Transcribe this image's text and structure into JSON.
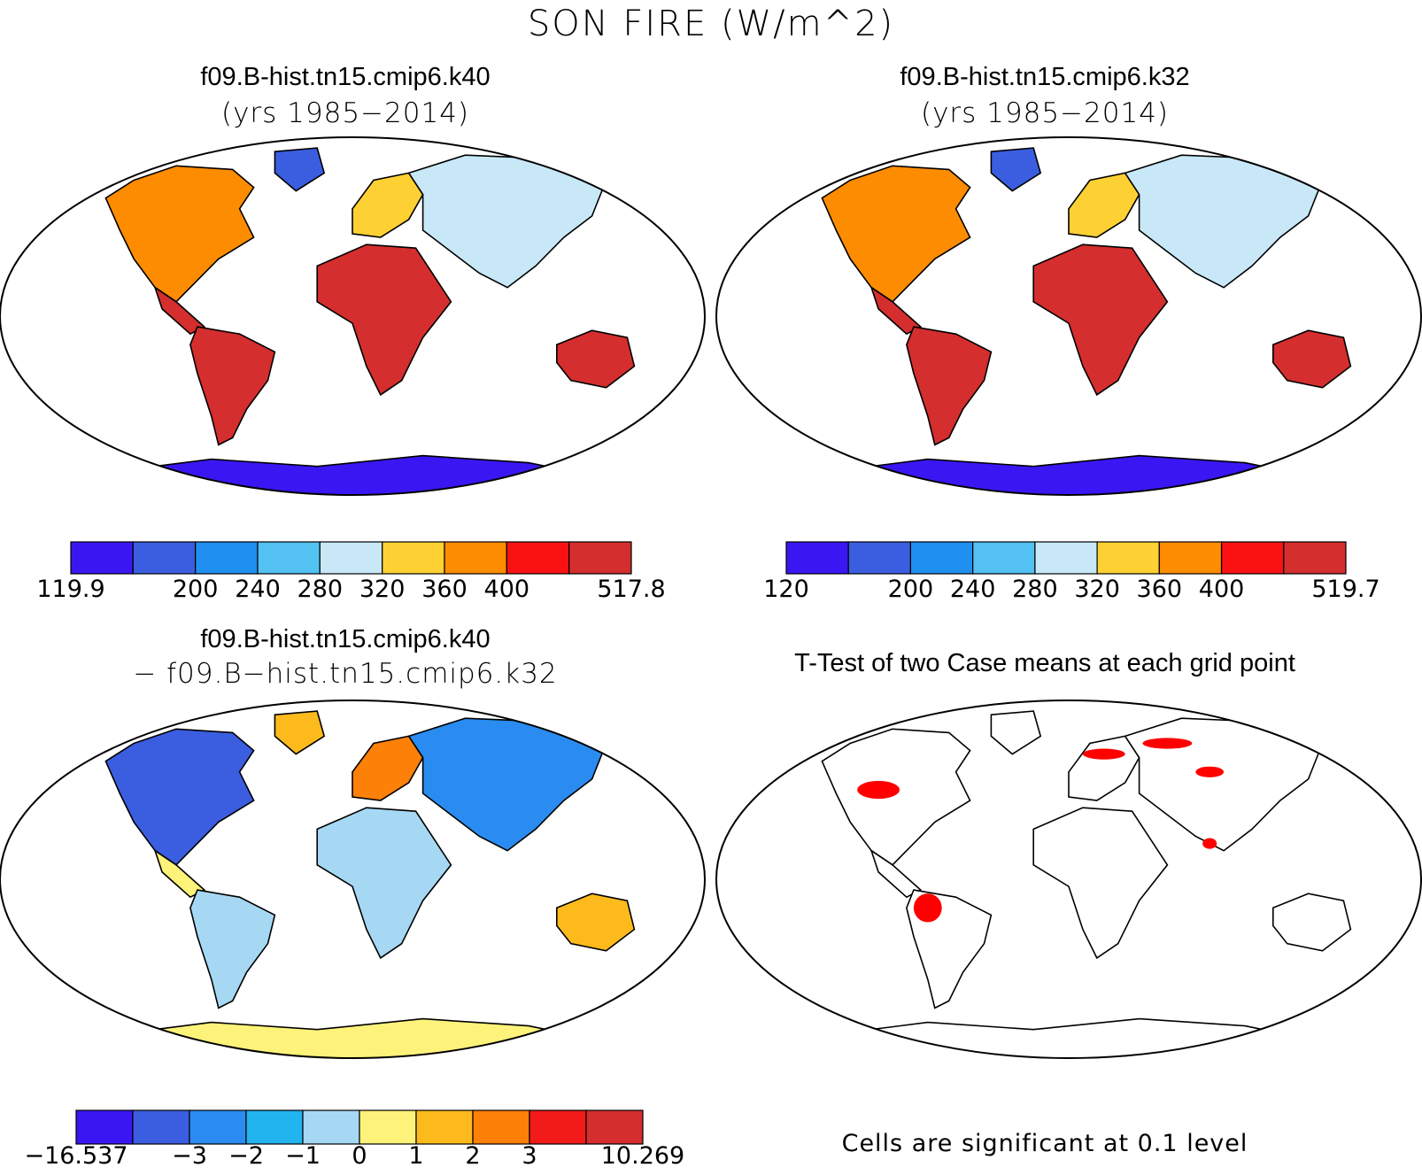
{
  "figure": {
    "title": "SON FIRE (W/m^2)"
  },
  "panels": [
    {
      "title": "f09.B-hist.tn15.cmip6.k40",
      "subtitle": "(yrs 1985−2014)",
      "colorbar": {
        "colors": [
          "#3a17f2",
          "#3b5ee0",
          "#1f8ff0",
          "#53c1f2",
          "#c8e8f8",
          "#fdd133",
          "#fe8c00",
          "#fa1212",
          "#d42e2e"
        ],
        "tick_labels": [
          "119.9",
          "200",
          "240",
          "280",
          "320",
          "360",
          "400",
          "517.8"
        ]
      }
    },
    {
      "title": "f09.B-hist.tn15.cmip6.k32",
      "subtitle": "(yrs 1985−2014)",
      "colorbar": {
        "colors": [
          "#3a17f2",
          "#3b5ee0",
          "#1f8ff0",
          "#53c1f2",
          "#c8e8f8",
          "#fdd133",
          "#fe8c00",
          "#fa1212",
          "#d42e2e"
        ],
        "tick_labels": [
          "120",
          "200",
          "240",
          "280",
          "320",
          "360",
          "400",
          "519.7"
        ]
      }
    },
    {
      "title": "f09.B-hist.tn15.cmip6.k40",
      "subtitle": "− f09.B−hist.tn15.cmip6.k32",
      "colorbar": {
        "colors": [
          "#3a17f2",
          "#3b5ee0",
          "#2a8cf0",
          "#22b4ef",
          "#a6d8f3",
          "#fdf27a",
          "#fdba1c",
          "#fd8008",
          "#f31a1a",
          "#d42e2e"
        ],
        "tick_labels": [
          "−16.537",
          "−3",
          "−2",
          "−1",
          "0",
          "1",
          "2",
          "3",
          "10.269"
        ]
      }
    },
    {
      "title": "T-Test of two Case means at each grid point",
      "note": "Cells are significant at 0.1 level",
      "significant_color": "#ff0000"
    }
  ]
}
